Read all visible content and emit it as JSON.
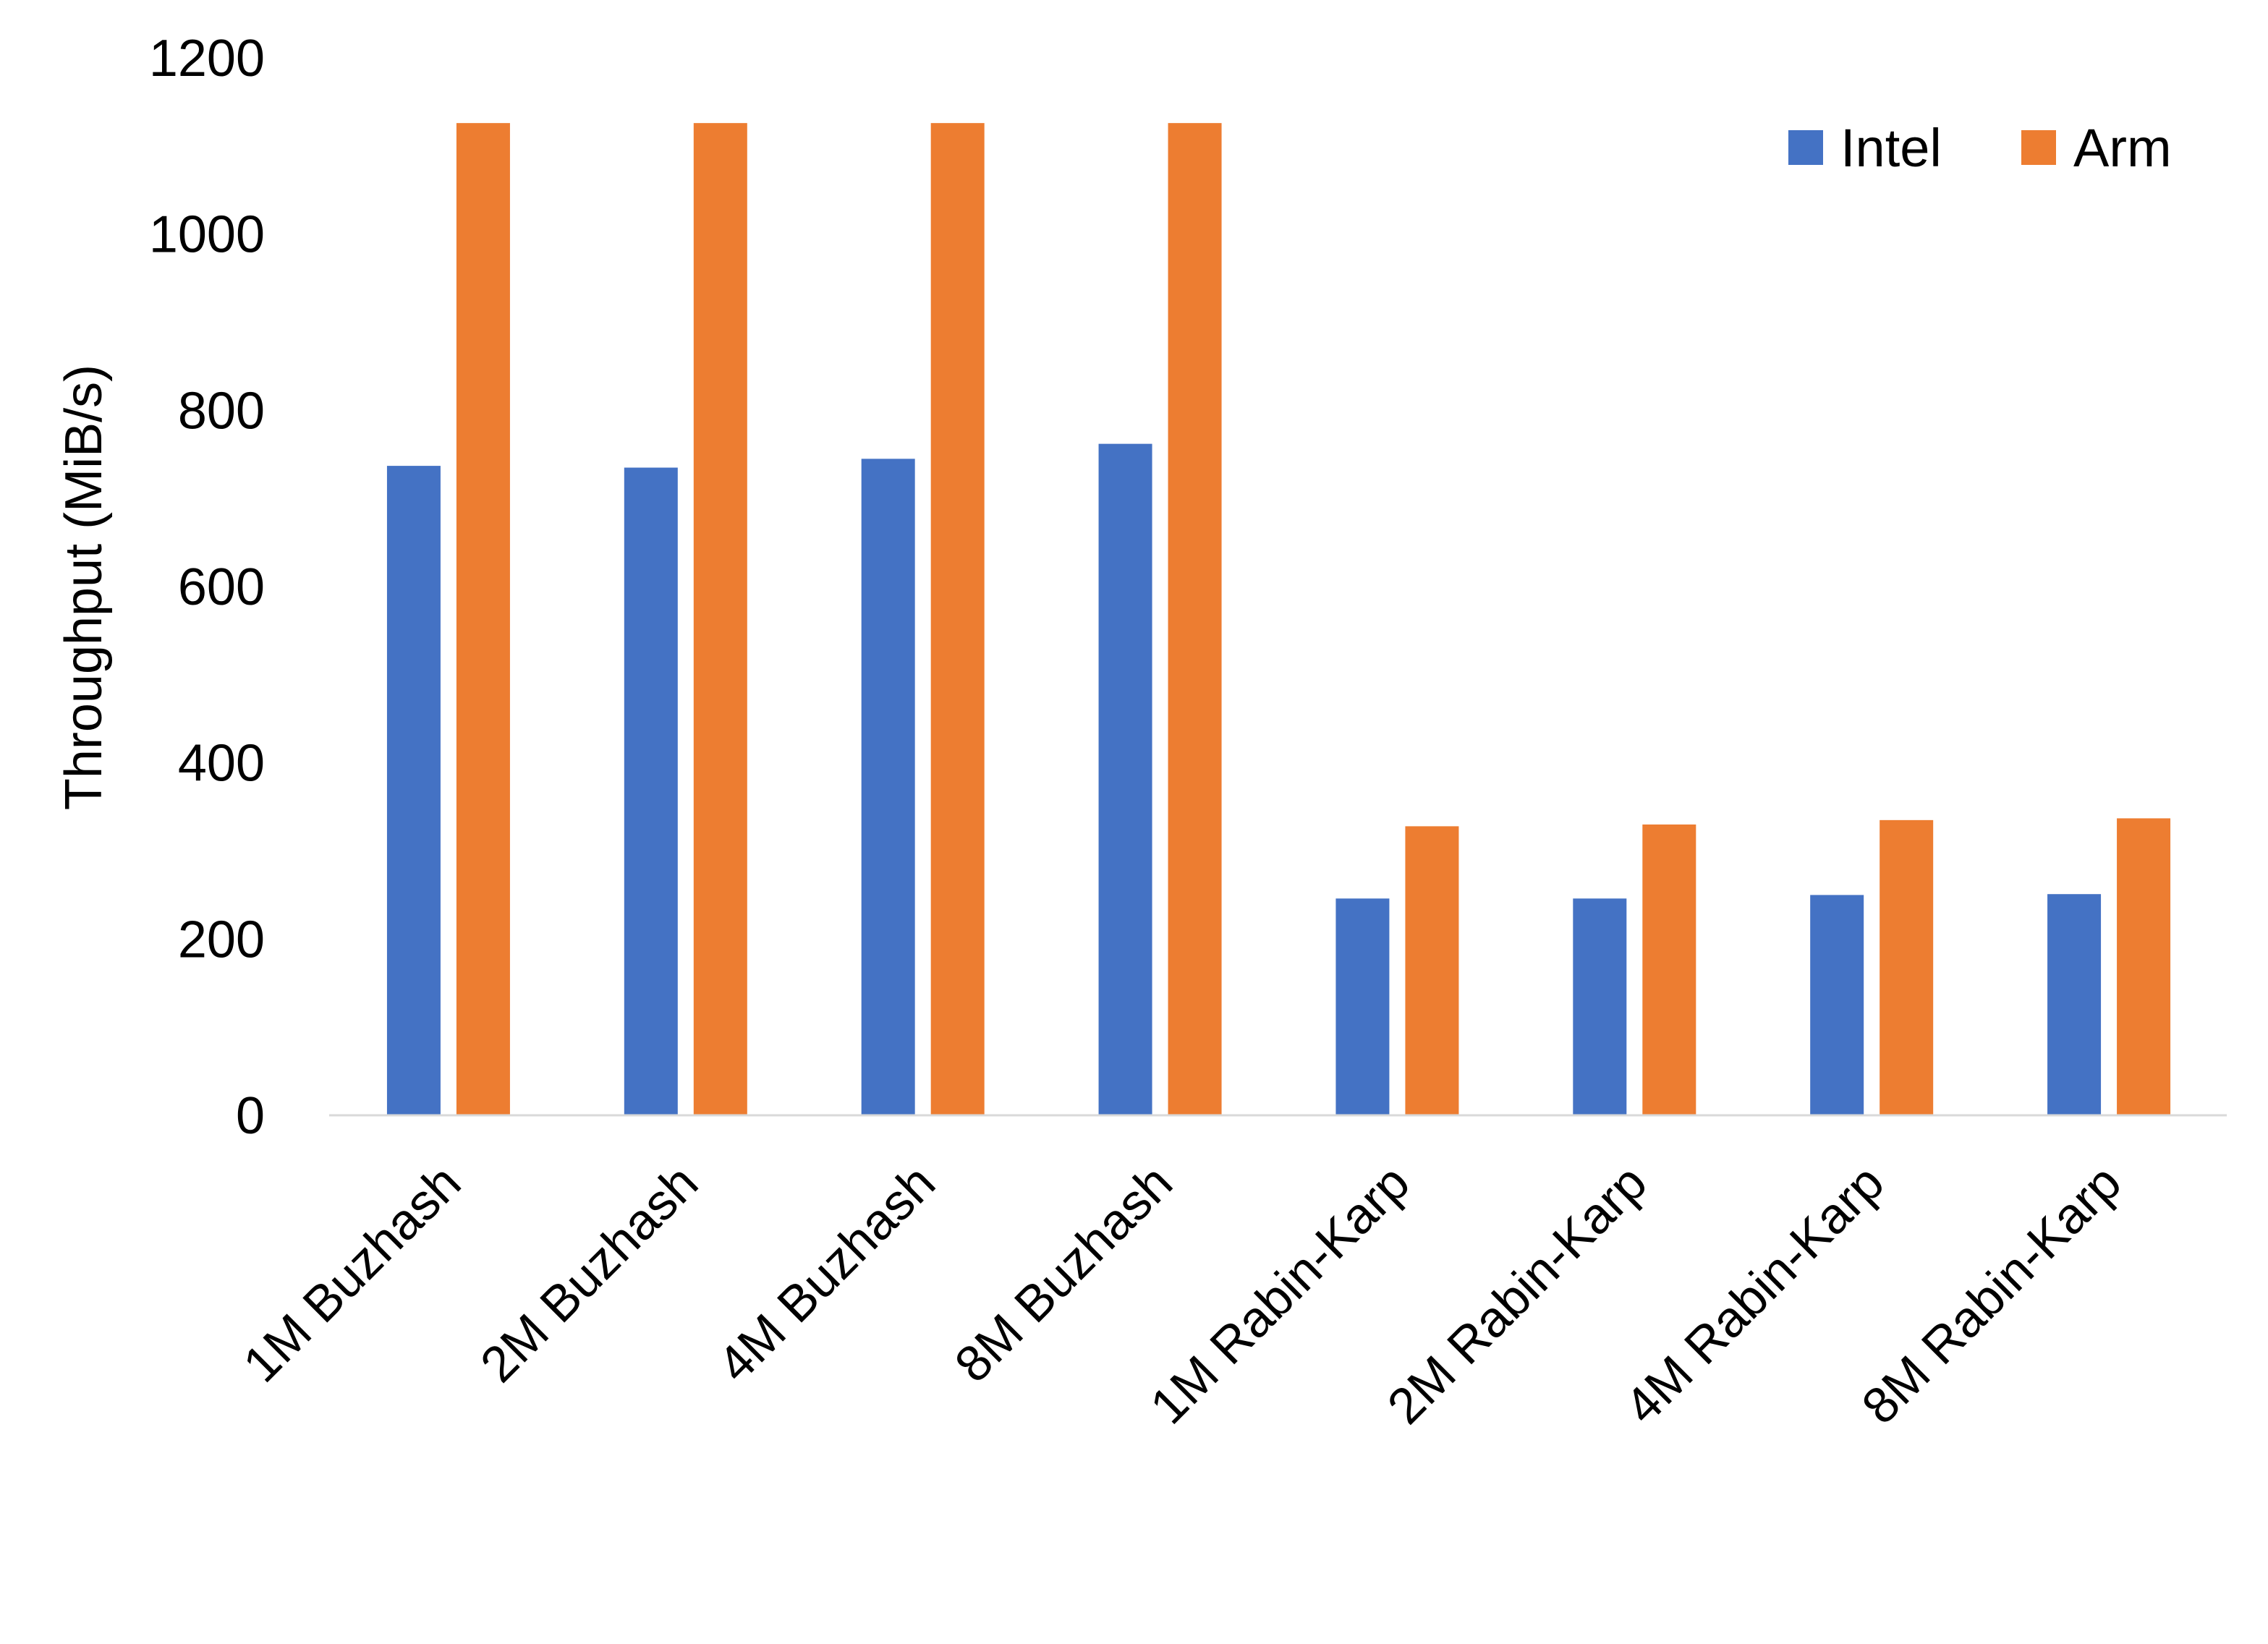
{
  "chart_data": {
    "type": "bar",
    "title": "",
    "xlabel": "",
    "ylabel": "Throughput (MiB/s)",
    "ylim": [
      0,
      1200
    ],
    "yticks": [
      0,
      200,
      400,
      600,
      800,
      1000,
      1200
    ],
    "grid": false,
    "legend_placement": "top-right",
    "categories": [
      "1M Buzhash",
      "2M Buzhash",
      "4M Buzhash",
      "8M Buzhash",
      "1M Rabin-Karp",
      "2M Rabin-Karp",
      "4M Rabin-Karp",
      "8M Rabin-Karp"
    ],
    "series": [
      {
        "name": "Intel",
        "color": "#4472C4",
        "values": [
          737,
          735,
          745,
          762,
          246,
          246,
          250,
          251
        ]
      },
      {
        "name": "Arm",
        "color": "#ED7D31",
        "values": [
          1126,
          1126,
          1126,
          1126,
          328,
          330,
          335,
          337
        ]
      }
    ]
  }
}
